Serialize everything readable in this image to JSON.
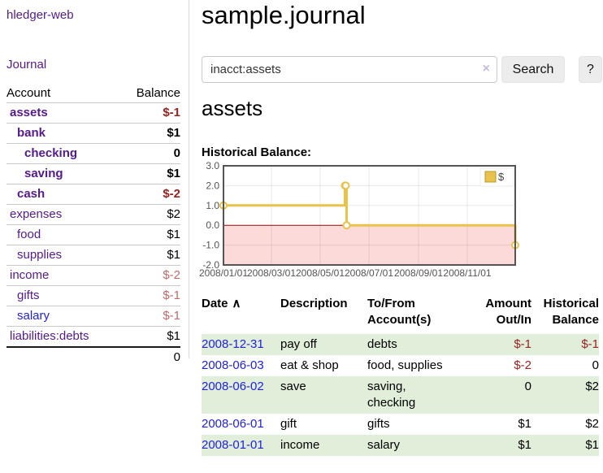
{
  "app": {
    "title": "hledger-web",
    "nav_journal": "Journal"
  },
  "sidebar_accounts": {
    "col_account": "Account",
    "col_balance": "Balance",
    "rows": [
      {
        "name": "assets",
        "level": 0,
        "bold": true,
        "balance": "$-1",
        "balance_style": "neg-strong"
      },
      {
        "name": "bank",
        "level": 1,
        "bold": true,
        "balance": "$1",
        "balance_style": "pos"
      },
      {
        "name": "checking",
        "level": 2,
        "bold": true,
        "balance": "0",
        "balance_style": "pos"
      },
      {
        "name": "saving",
        "level": 2,
        "bold": true,
        "balance": "$1",
        "balance_style": "pos"
      },
      {
        "name": "cash",
        "level": 1,
        "bold": true,
        "balance": "$-2",
        "balance_style": "neg-strong"
      },
      {
        "name": "expenses",
        "level": 0,
        "bold": false,
        "balance": "$2",
        "balance_style": "pos"
      },
      {
        "name": "food",
        "level": 1,
        "bold": false,
        "balance": "$1",
        "balance_style": "pos"
      },
      {
        "name": "supplies",
        "level": 1,
        "bold": false,
        "balance": "$1",
        "balance_style": "pos"
      },
      {
        "name": "income",
        "level": 0,
        "bold": false,
        "balance": "$-2",
        "balance_style": "neg-muted"
      },
      {
        "name": "gifts",
        "level": 1,
        "bold": false,
        "balance": "$-1",
        "balance_style": "neg-muted"
      },
      {
        "name": "salary",
        "level": 1,
        "bold": false,
        "balance": "$-1",
        "balance_style": "neg-muted",
        "link_color": "blue"
      },
      {
        "name": "liabilities:debts",
        "level": 0,
        "bold": false,
        "balance": "$1",
        "balance_style": "pos"
      }
    ],
    "total": "0"
  },
  "header": {
    "title": "sample.journal"
  },
  "search": {
    "value": "inacct:assets",
    "clear_icon": "×",
    "button": "Search",
    "help_button": "?"
  },
  "account_page": {
    "heading": "assets",
    "chart_title": "Historical Balance:"
  },
  "chart_data": {
    "type": "line",
    "style": "steps",
    "title": "Historical Balance:",
    "x_start": "2008-01-01",
    "x_end": "2008-12-31",
    "ylim": [
      -2,
      3
    ],
    "y_ticks": [
      "3.0",
      "2.0",
      "1.0",
      "0.0",
      "-1.0",
      "-2.0"
    ],
    "x_ticks": [
      "2008/01/01",
      "2008/03/01",
      "2008/05/01",
      "2008/07/01",
      "2008/09/01",
      "2008/11/01"
    ],
    "legend": {
      "label": "$",
      "position": "top-right"
    },
    "series": [
      {
        "name": "$",
        "color": "#e8c24a",
        "points": [
          {
            "date": "2008-01-01",
            "value": 1
          },
          {
            "date": "2008-06-01",
            "value": 2
          },
          {
            "date": "2008-06-02",
            "value": 2
          },
          {
            "date": "2008-06-03",
            "value": 0
          },
          {
            "date": "2008-12-31",
            "value": -1
          }
        ]
      }
    ],
    "grid": true,
    "negative_region_color": "#fcdada",
    "zero_line_color": "#8f1010"
  },
  "register": {
    "columns": [
      {
        "key": "date",
        "label": "Date",
        "arrow": "∧",
        "align": "left"
      },
      {
        "key": "description",
        "label": "Description",
        "align": "left"
      },
      {
        "key": "accounts",
        "label": "To/From\nAccount(s)",
        "align": "left"
      },
      {
        "key": "amount",
        "label": "Amount\nOut/In",
        "align": "right"
      },
      {
        "key": "balance",
        "label": "Historical\nBalance",
        "align": "right"
      }
    ],
    "rows": [
      {
        "date": "2008-12-31",
        "description": "pay off",
        "accounts": "debts",
        "amount": "$-1",
        "amount_neg": true,
        "balance": "$-1",
        "balance_neg": true,
        "shaded": true
      },
      {
        "date": "2008-06-03",
        "description": "eat & shop",
        "accounts": "food, supplies",
        "amount": "$-2",
        "amount_neg": true,
        "balance": "0",
        "balance_neg": false,
        "shaded": false
      },
      {
        "date": "2008-06-02",
        "description": "save",
        "accounts": "saving,\nchecking",
        "amount": "0",
        "amount_neg": false,
        "balance": "$2",
        "balance_neg": false,
        "shaded": true
      },
      {
        "date": "2008-06-01",
        "description": "gift",
        "accounts": "gifts",
        "amount": "$1",
        "amount_neg": false,
        "balance": "$2",
        "balance_neg": false,
        "shaded": false
      },
      {
        "date": "2008-01-01",
        "description": "income",
        "accounts": "salary",
        "amount": "$1",
        "amount_neg": false,
        "balance": "$1",
        "balance_neg": false,
        "shaded": true
      }
    ]
  },
  "colors": {
    "accent_purple": "#551a8b",
    "link_blue": "#2222dd",
    "negative_strong": "#992222",
    "negative_muted": "#c06a6a",
    "row_shade_green": "#e0eeda",
    "chart_line_gold": "#e8c24a",
    "chart_negative_region": "#fcdada",
    "chart_zero_line": "#8f1010",
    "chart_border": "#545454"
  }
}
